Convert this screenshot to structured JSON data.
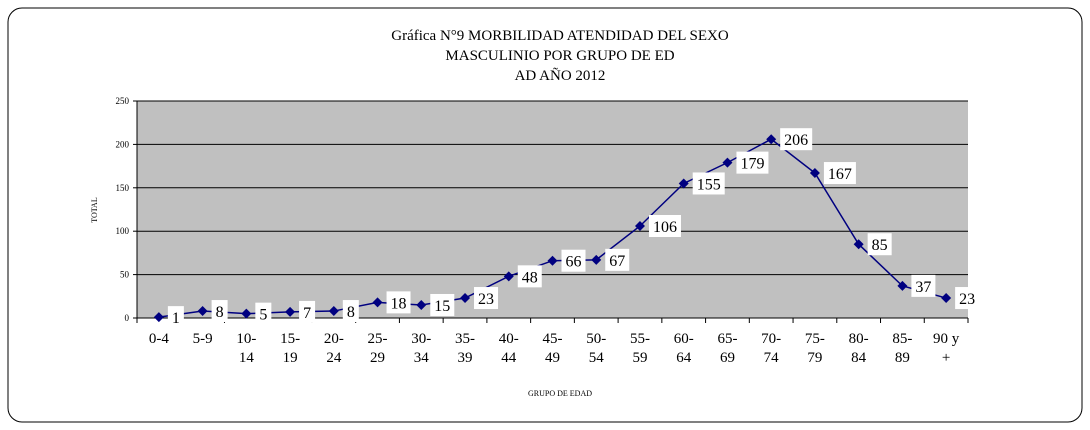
{
  "chart_data": {
    "type": "line",
    "title": [
      "Gráfica N°9 MORBILIDAD ATENDIDAD DEL SEXO",
      "MASCULINIO POR GRUPO DE ED",
      "AD AÑO 2012"
    ],
    "x_label": "GRUPO DE EDAD",
    "y_label": "TOTAL",
    "categories": [
      "0-4",
      "5-9",
      "10-14",
      "15-19",
      "20-24",
      "25-29",
      "30-34",
      "35-39",
      "40-44",
      "45-49",
      "50-54",
      "55-59",
      "60-64",
      "65-69",
      "70-74",
      "75-79",
      "80-84",
      "85-89",
      "90 y +"
    ],
    "series": [
      {
        "name": "TOTAL",
        "color": "#000080",
        "values": [
          1,
          8,
          5,
          7,
          8,
          18,
          15,
          23,
          48,
          66,
          67,
          106,
          155,
          179,
          206,
          167,
          85,
          37,
          23
        ]
      }
    ],
    "ylim": [
      0,
      250
    ],
    "yticks": [
      0,
      50,
      100,
      150,
      200,
      250
    ],
    "grid": true
  }
}
